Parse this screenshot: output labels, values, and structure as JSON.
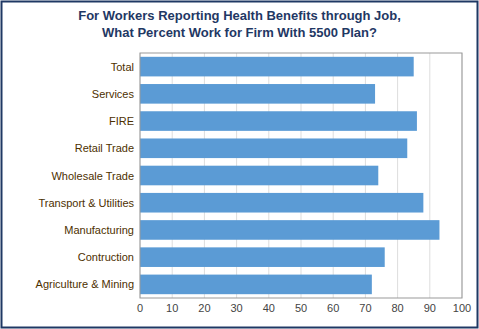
{
  "chart_data": {
    "type": "bar",
    "orientation": "horizontal",
    "title": "For Workers Reporting Health Benefits through Job,\nWhat Percent Work for Firm With 5500 Plan?",
    "categories": [
      "Agriculture & Mining",
      "Contruction",
      "Manufacturing",
      "Transport & Utilities",
      "Wholesale Trade",
      "Retail Trade",
      "FIRE",
      "Services",
      "Total"
    ],
    "values": [
      72,
      76,
      93,
      88,
      74,
      83,
      86,
      73,
      85
    ],
    "color": "#5b9bd5",
    "xlim": [
      0,
      100
    ],
    "xticks": [
      0,
      10,
      20,
      30,
      40,
      50,
      60,
      70,
      80,
      90,
      100
    ],
    "grid": true
  }
}
